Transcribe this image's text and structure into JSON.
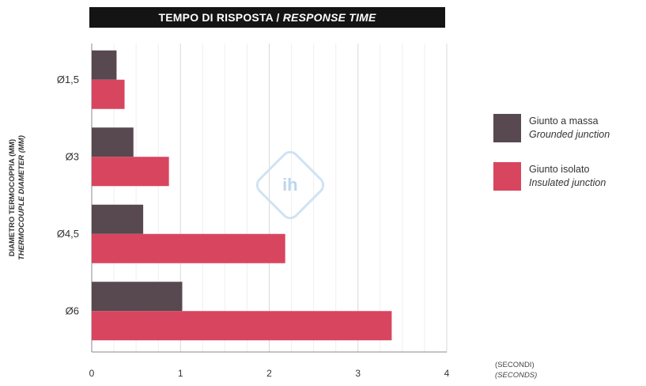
{
  "title": {
    "main": "TEMPO DI RISPOSTA /",
    "italic": "RESPONSE TIME"
  },
  "y_axis_label": {
    "line1": "DIAMETRO TERMOCOPPIA (MM)",
    "line2": "THERMOCOUPLE DIAMETER (MM)"
  },
  "x_axis_label": {
    "line1": "(SECONDI)",
    "line2": "(SECONDS)"
  },
  "watermark": "ih",
  "legend": [
    {
      "line1": "Giunto a massa",
      "line2": "Grounded junction",
      "color": "#57494f"
    },
    {
      "line1": "Giunto isolato",
      "line2": "Insulated junction",
      "color": "#d8455f"
    }
  ],
  "chart_data": {
    "type": "bar",
    "orientation": "horizontal",
    "title": "TEMPO DI RISPOSTA / RESPONSE TIME",
    "categories": [
      "Ø1,5",
      "Ø3",
      "Ø4,5",
      "Ø6"
    ],
    "series": [
      {
        "name": "Giunto a massa / Grounded junction",
        "color": "#57494f",
        "values": [
          0.28,
          0.47,
          0.58,
          1.02
        ]
      },
      {
        "name": "Giunto isolato / Insulated junction",
        "color": "#d8455f",
        "values": [
          0.37,
          0.87,
          2.18,
          3.38
        ]
      }
    ],
    "xlabel": "(SECONDI) (SECONDS)",
    "ylabel": "DIAMETRO TERMOCOPPIA (MM) THERMOCOUPLE DIAMETER (MM)",
    "xlim": [
      0,
      4
    ],
    "xticks": [
      "0",
      "1",
      "2",
      "3",
      "4"
    ],
    "grid": true,
    "legend_position": "right"
  }
}
